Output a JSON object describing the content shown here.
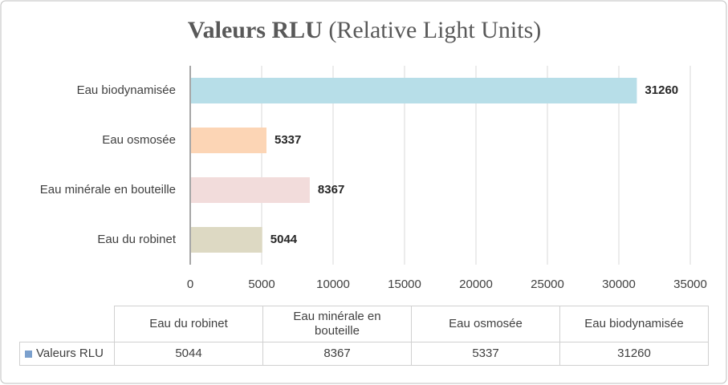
{
  "chart_data": {
    "type": "bar",
    "orientation": "horizontal",
    "title": "Valeurs RLU",
    "subtitle": "(Relative Light Units)",
    "categories": [
      "Eau du robinet",
      "Eau minérale en bouteille",
      "Eau osmosée",
      "Eau biodynamisée"
    ],
    "series": [
      {
        "name": "Valeurs RLU",
        "color": "#7ba0cd",
        "values": [
          5044,
          8367,
          5337,
          31260
        ]
      }
    ],
    "bar_colors": [
      "#ddd9c3",
      "#f2dcdb",
      "#fcd5b5",
      "#b7dee8"
    ],
    "xlim": [
      0,
      35000
    ],
    "xticks": [
      0,
      5000,
      10000,
      15000,
      20000,
      25000,
      30000,
      35000
    ],
    "grid": true,
    "data_table": true
  }
}
